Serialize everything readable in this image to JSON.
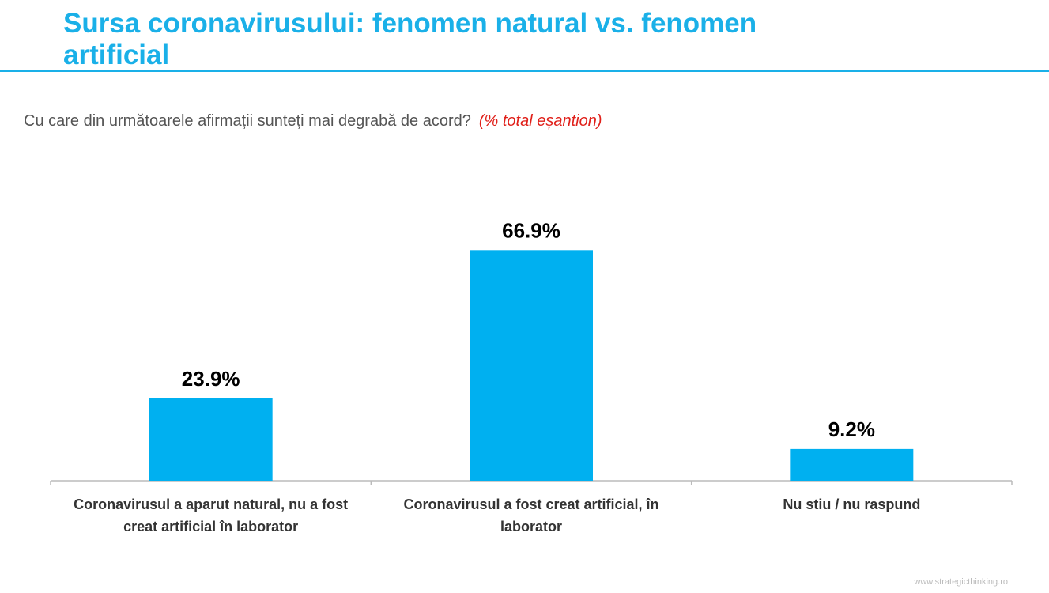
{
  "chart_data": {
    "type": "bar",
    "title": "Sursa coronavirusului: fenomen natural vs. fenomen artificial",
    "subtitle": "Cu care din următoarele afirmații sunteți mai degrabă de acord?",
    "note": "(% total eșantion)",
    "categories": [
      "Coronavirusul a aparut natural, nu a fost creat artificial în laborator",
      "Coronavirusul a fost creat artificial, în laborator",
      "Nu stiu / nu raspund"
    ],
    "values": [
      23.9,
      66.9,
      9.2
    ],
    "value_labels": [
      "23.9%",
      "66.9%",
      "9.2%"
    ],
    "color": "#00b0f0",
    "source": "www.strategicthinking.ro"
  }
}
